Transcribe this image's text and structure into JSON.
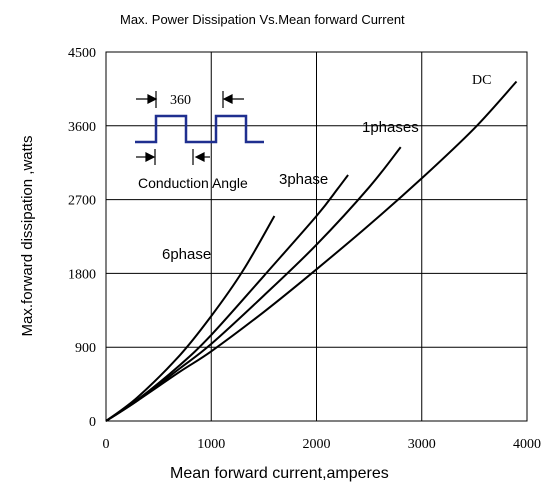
{
  "chart_data": {
    "type": "line",
    "title": "Max. Power Dissipation Vs.Mean forward Current",
    "xlabel": "Mean forward current,amperes",
    "ylabel": "Max.forward dissipation ,watts",
    "xlim": [
      0,
      4000
    ],
    "ylim": [
      0,
      4500
    ],
    "xticks": [
      0,
      1000,
      2000,
      3000,
      4000
    ],
    "yticks": [
      0,
      900,
      1800,
      2700,
      3600,
      4500
    ],
    "grid": true,
    "series": [
      {
        "name": "DC",
        "x": [
          0,
          300,
          700,
          1000,
          1500,
          2000,
          2500,
          3000,
          3500,
          3900
        ],
        "y": [
          0,
          250,
          600,
          850,
          1330,
          1850,
          2390,
          2960,
          3570,
          4140
        ]
      },
      {
        "name": "1phases",
        "x": [
          0,
          300,
          700,
          1000,
          1500,
          2000,
          2500,
          2800
        ],
        "y": [
          0,
          250,
          640,
          940,
          1530,
          2150,
          2850,
          3340
        ]
      },
      {
        "name": "3phase",
        "x": [
          0,
          300,
          700,
          1000,
          1500,
          2000,
          2200,
          2300
        ],
        "y": [
          0,
          260,
          680,
          1050,
          1770,
          2500,
          2830,
          3000
        ]
      },
      {
        "name": "6phase",
        "x": [
          0,
          300,
          700,
          1000,
          1300,
          1600
        ],
        "y": [
          0,
          290,
          800,
          1280,
          1830,
          2500
        ]
      }
    ]
  },
  "inset": {
    "angle_label": "360",
    "caption": "Conduction Angle",
    "waveform_color": "#1f2f8f"
  }
}
